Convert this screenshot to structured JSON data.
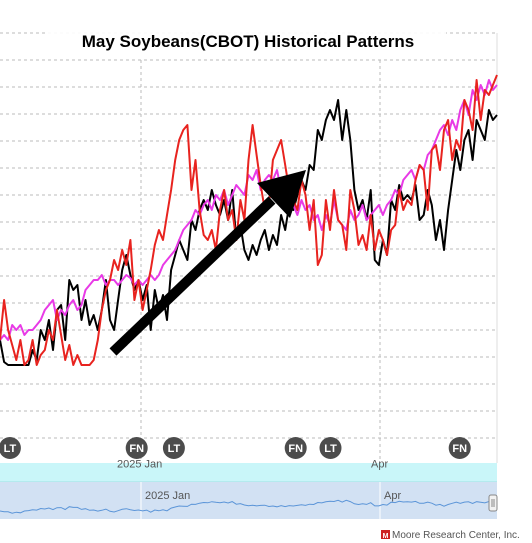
{
  "chart_data": {
    "type": "line",
    "title": "May Soybeans(CBOT) Historical Patterns",
    "xlabel": "",
    "ylabel": "",
    "grid": true,
    "navigator_labels": [
      "2025 Jan",
      "Apr"
    ],
    "x_tick_labels": [
      "2025 Jan",
      "Apr"
    ],
    "series": [
      {
        "color": "#000000",
        "values": [
          300,
          322,
          328,
          360,
          345,
          362,
          330,
          325,
          310,
          320,
          290,
          300,
          280,
          310,
          270,
          265,
          300,
          240,
          250,
          245,
          280,
          260,
          285,
          275,
          290,
          270,
          240,
          280,
          290,
          260,
          230,
          215,
          235,
          250,
          240,
          260,
          245,
          290,
          250,
          270,
          255,
          280,
          230,
          215,
          200,
          210,
          220,
          180,
          190,
          170,
          160,
          170,
          150,
          165,
          175,
          160,
          180,
          150,
          200,
          185,
          210,
          220,
          205,
          215,
          200,
          190,
          210,
          195,
          205,
          175,
          190,
          165,
          170,
          155,
          140,
          150,
          125,
          130,
          90,
          100,
          80,
          70,
          80,
          60,
          100,
          70,
          100,
          150,
          170,
          160,
          180,
          150,
          220,
          225,
          200,
          215,
          160,
          170,
          145,
          160,
          155,
          160,
          145,
          180,
          175,
          150,
          165,
          200,
          180,
          210,
          170,
          140,
          110,
          130,
          100,
          90,
          120,
          80,
          90,
          100,
          70,
          80,
          75
        ],
        "name": ""
      },
      {
        "color": "#e8231f",
        "values": [
          300,
          260,
          290,
          305,
          320,
          300,
          345,
          320,
          300,
          330,
          315,
          310,
          290,
          300,
          270,
          295,
          320,
          305,
          330,
          315,
          340,
          330,
          350,
          320,
          300,
          270,
          250,
          240,
          220,
          230,
          210,
          225,
          200,
          260,
          240,
          270,
          250,
          230,
          205,
          190,
          200,
          175,
          150,
          120,
          100,
          90,
          85,
          150,
          120,
          170,
          195,
          200,
          190,
          210,
          170,
          150,
          180,
          170,
          200,
          160,
          180,
          120,
          85,
          115,
          145,
          170,
          165,
          120,
          110,
          100,
          125,
          150,
          160,
          170,
          140,
          155,
          190,
          160,
          225,
          215,
          160,
          190,
          150,
          180,
          185,
          210,
          150,
          170,
          205,
          195,
          210,
          175,
          210,
          190,
          200,
          215,
          190,
          185,
          150,
          170,
          160,
          165,
          140,
          125,
          130,
          170,
          110,
          105,
          130,
          90,
          80,
          120,
          100,
          110,
          60,
          70,
          90,
          40,
          80,
          50,
          55,
          45,
          35
        ],
        "name": ""
      },
      {
        "color": "#e83ae6",
        "values": [
          300,
          295,
          300,
          285,
          290,
          285,
          295,
          290,
          290,
          285,
          280,
          270,
          265,
          260,
          280,
          270,
          275,
          265,
          260,
          270,
          265,
          250,
          245,
          240,
          240,
          235,
          245,
          240,
          240,
          245,
          240,
          235,
          238,
          245,
          240,
          245,
          240,
          235,
          240,
          235,
          225,
          220,
          215,
          210,
          200,
          190,
          185,
          180,
          170,
          175,
          165,
          160,
          170,
          155,
          160,
          150,
          165,
          155,
          145,
          150,
          155,
          135,
          140,
          130,
          150,
          140,
          135,
          140,
          130,
          150,
          145,
          160,
          165,
          175,
          160,
          170,
          165,
          180,
          175,
          190,
          175,
          185,
          160,
          180,
          185,
          190,
          170,
          180,
          175,
          165,
          180,
          175,
          170,
          165,
          175,
          165,
          160,
          150,
          155,
          140,
          135,
          130,
          140,
          125,
          130,
          115,
          110,
          100,
          90,
          85,
          95,
          80,
          90,
          70,
          60,
          75,
          50,
          60,
          45,
          55,
          40,
          50,
          45
        ],
        "name": ""
      }
    ],
    "event_markers": [
      {
        "label": "LT",
        "position": 0.02
      },
      {
        "label": "FN",
        "position": 0.275
      },
      {
        "label": "LT",
        "position": 0.35
      },
      {
        "label": "FN",
        "position": 0.595
      },
      {
        "label": "LT",
        "position": 0.665
      },
      {
        "label": "FN",
        "position": 0.925
      }
    ],
    "arrow": {
      "direction": "up-right"
    }
  },
  "footer": {
    "credit": "Moore Research Center, Inc.",
    "logo_text": "M"
  },
  "colors": {
    "grid": "#bbbbbb",
    "x_axis_band": "#c9f6f9",
    "navigator_band": "#d2e1f3",
    "navigator_line": "#5b95d8",
    "marker_fill": "#4c4c4c",
    "logo": "#cc2222"
  }
}
